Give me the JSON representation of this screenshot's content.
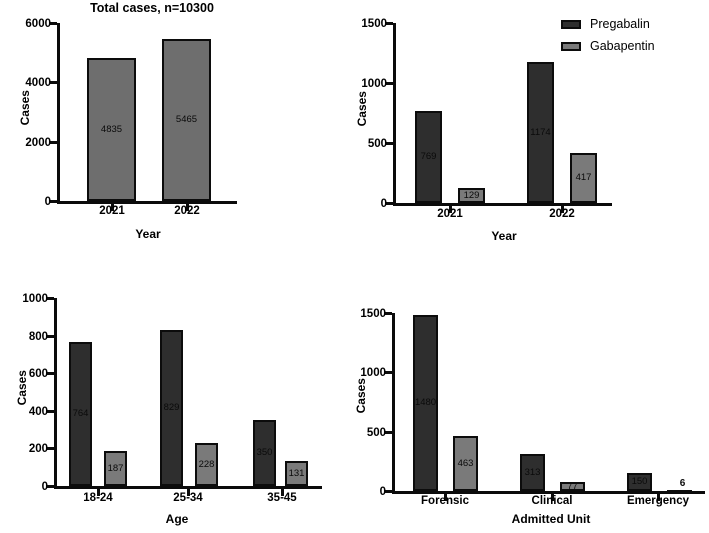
{
  "figure": {
    "background": "#ffffff",
    "description": "Four-panel bar chart figure of poisoning cases"
  },
  "colors": {
    "pregabalin": "#2e2e2e",
    "gabapentin": "#7a7a7a",
    "total_bar": "#6e6e6e",
    "axis": "#0b0b0b",
    "text": "#000000"
  },
  "legend": {
    "items": [
      {
        "label": "Pregabalin",
        "color_key": "pregabalin"
      },
      {
        "label": "Gabapentin",
        "color_key": "gabapentin"
      }
    ]
  },
  "chart_data": [
    {
      "id": "total-cases-by-year",
      "type": "bar",
      "title": "Total cases, n=10300",
      "xlabel": "Year",
      "ylabel": "Cases",
      "categories": [
        "2021",
        "2022"
      ],
      "values": [
        4835,
        5465
      ],
      "bar_color_key": "total_bar",
      "ylim": [
        0,
        6000
      ],
      "yticks": [
        "0",
        "2000",
        "4000",
        "6000"
      ],
      "grid": false,
      "legend_position": "none"
    },
    {
      "id": "cases-by-drug-and-year",
      "type": "bar",
      "title": "",
      "xlabel": "Year",
      "ylabel": "Cases",
      "categories": [
        "2021",
        "2022"
      ],
      "series": [
        {
          "name": "Pregabalin",
          "color_key": "pregabalin",
          "values": [
            769,
            1174
          ]
        },
        {
          "name": "Gabapentin",
          "color_key": "gabapentin",
          "values": [
            129,
            417
          ]
        }
      ],
      "ylim": [
        0,
        1500
      ],
      "yticks": [
        "0",
        "500",
        "1000",
        "1500"
      ],
      "grid": false,
      "legend_position": "top-right"
    },
    {
      "id": "cases-by-age-group",
      "type": "bar",
      "title": "",
      "xlabel": "Age",
      "ylabel": "Cases",
      "categories": [
        "18-24",
        "25-34",
        "35-45"
      ],
      "series": [
        {
          "name": "Pregabalin",
          "color_key": "pregabalin",
          "values": [
            764,
            829,
            350
          ]
        },
        {
          "name": "Gabapentin",
          "color_key": "gabapentin",
          "values": [
            187,
            228,
            131
          ]
        }
      ],
      "ylim": [
        0,
        1000
      ],
      "yticks": [
        "0",
        "200",
        "400",
        "600",
        "800",
        "1000"
      ],
      "grid": false,
      "legend_position": "none"
    },
    {
      "id": "cases-by-admitted-unit",
      "type": "bar",
      "title": "",
      "xlabel": "Admitted Unit",
      "ylabel": "Cases",
      "categories": [
        "Forensic",
        "Clinical",
        "Emergency"
      ],
      "series": [
        {
          "name": "Pregabalin",
          "color_key": "pregabalin",
          "values": [
            1480,
            313,
            150
          ]
        },
        {
          "name": "Gabapentin",
          "color_key": "gabapentin",
          "values": [
            463,
            77,
            6
          ]
        }
      ],
      "ylim": [
        0,
        1500
      ],
      "yticks": [
        "0",
        "500",
        "1000",
        "1500"
      ],
      "grid": false,
      "legend_position": "none"
    }
  ]
}
